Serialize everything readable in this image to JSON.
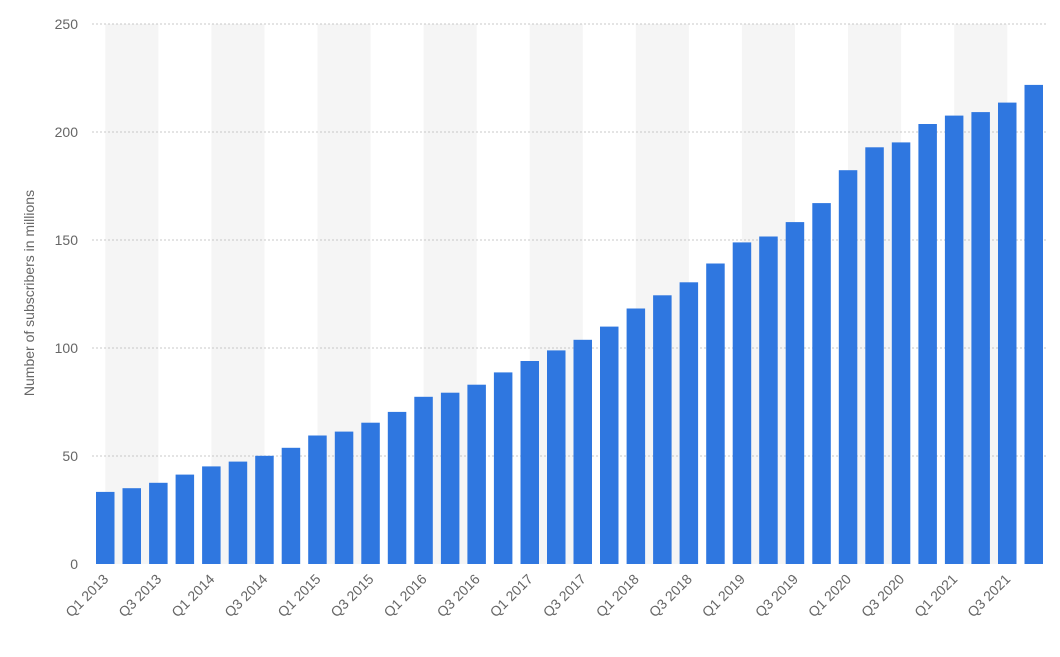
{
  "chart_data": {
    "type": "bar",
    "title": "",
    "xlabel": "",
    "ylabel": "Number of subscribers in millions",
    "ylim": [
      0,
      250
    ],
    "yticks": [
      0,
      50,
      100,
      150,
      200,
      250
    ],
    "grid": true,
    "categories": [
      "Q1 2013",
      "Q2 2013",
      "Q3 2013",
      "Q4 2013",
      "Q1 2014",
      "Q2 2014",
      "Q3 2014",
      "Q4 2014",
      "Q1 2015",
      "Q2 2015",
      "Q3 2015",
      "Q4 2015",
      "Q1 2016",
      "Q2 2016",
      "Q3 2016",
      "Q4 2016",
      "Q1 2017",
      "Q2 2017",
      "Q3 2017",
      "Q4 2017",
      "Q1 2018",
      "Q2 2018",
      "Q3 2018",
      "Q4 2018",
      "Q1 2019",
      "Q2 2019",
      "Q3 2019",
      "Q4 2019",
      "Q1 2020",
      "Q2 2020",
      "Q3 2020",
      "Q4 2020",
      "Q1 2021",
      "Q2 2021",
      "Q3 2021",
      "Q4 2021"
    ],
    "x_tick_labels": [
      "Q1 2013",
      "Q3 2013",
      "Q1 2014",
      "Q3 2014",
      "Q1 2015",
      "Q3 2015",
      "Q1 2016",
      "Q3 2016",
      "Q1 2017",
      "Q3 2017",
      "Q1 2018",
      "Q3 2018",
      "Q1 2019",
      "Q3 2019",
      "Q1 2020",
      "Q3 2020",
      "Q1 2021",
      "Q3 2021"
    ],
    "values": [
      33.4,
      35.1,
      37.6,
      41.4,
      45.2,
      47.4,
      50.1,
      53.8,
      59.5,
      61.3,
      65.4,
      70.4,
      77.4,
      79.3,
      83.0,
      88.7,
      94.0,
      98.9,
      103.8,
      109.9,
      118.3,
      124.4,
      130.4,
      139.1,
      148.9,
      151.6,
      158.3,
      167.1,
      182.3,
      192.9,
      195.2,
      203.7,
      207.6,
      209.2,
      213.6,
      221.8
    ],
    "colors": {
      "bar": "#2f77e0",
      "band": "#f5f5f5",
      "grid": "#c8c8c8",
      "axis_text": "#666666"
    }
  }
}
